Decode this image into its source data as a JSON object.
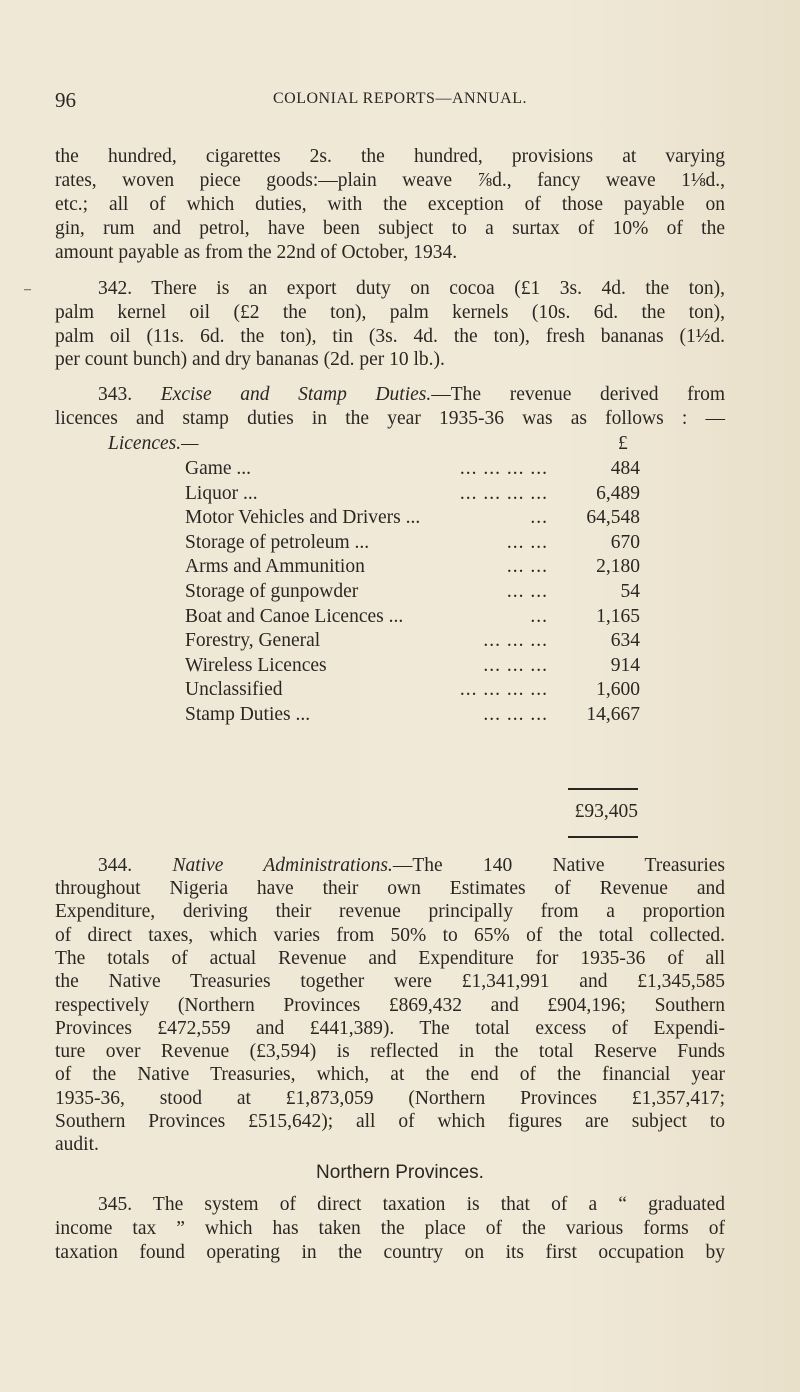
{
  "header": {
    "page_number": "96",
    "running_title": "COLONIAL REPORTS—ANNUAL."
  },
  "para_cont": [
    "the hundred, cigarettes 2s. the hundred, provisions at varying",
    "rates, woven piece goods:—plain weave ⅞d., fancy weave 1⅛d.,",
    "etc.; all of which duties, with the exception of those payable on",
    "gin, rum and petrol, have been subject to a surtax of 10% of the",
    "amount payable as from the 22nd of October, 1934."
  ],
  "para_342": [
    "342.  There is an export duty on cocoa (£1 3s. 4d. the ton),",
    "palm kernel oil (£2 the ton), palm kernels (10s. 6d. the ton),",
    "palm oil (11s. 6d. the ton), tin (3s. 4d. the ton), fresh bananas (1½d.",
    "per count bunch) and dry bananas (2d. per 10 lb.)."
  ],
  "para_343": {
    "number": "343.",
    "heading": "Excise and Stamp Duties.",
    "line1_rest": "—The revenue derived from",
    "line2": "licences and stamp duties in the year 1935-36 was as follows : —"
  },
  "table": {
    "section_label": "Licences.—",
    "currency": "£",
    "rows": [
      {
        "label": "Game ...",
        "dots": "...   ...   ...   ...",
        "value": "484"
      },
      {
        "label": "Liquor ...",
        "dots": "...   ...   ...   ...",
        "value": "6,489"
      },
      {
        "label": "Motor Vehicles and Drivers ...",
        "dots": "...",
        "value": "64,548"
      },
      {
        "label": "Storage of petroleum ...",
        "dots": "...   ...",
        "value": "670"
      },
      {
        "label": "Arms and Ammunition",
        "dots": "...   ...",
        "value": "2,180"
      },
      {
        "label": "Storage of gunpowder",
        "dots": "...   ...",
        "value": "54"
      },
      {
        "label": "Boat and Canoe Licences ...",
        "dots": "...",
        "value": "1,165"
      },
      {
        "label": "Forestry, General",
        "dots": "...   ...   ...",
        "value": "634"
      },
      {
        "label": "Wireless Licences",
        "dots": "...   ...   ...",
        "value": "914"
      },
      {
        "label": "Unclassified",
        "dots": "...   ...   ...   ...",
        "value": "1,600"
      },
      {
        "label": "Stamp Duties ...",
        "dots": "...   ...   ...",
        "value": "14,667"
      }
    ],
    "total": "£93,405"
  },
  "para_344": {
    "number": "344.",
    "heading": "Native Administrations.",
    "line1_rest": "—The 140 Native Treasuries",
    "lines": [
      "throughout Nigeria have their own Estimates of Revenue and",
      "Expenditure, deriving their revenue principally from a proportion",
      "of direct taxes, which varies from 50% to 65% of the total collected.",
      "The totals of actual Revenue and Expenditure for 1935-36 of all",
      "the Native Treasuries together were £1,341,991 and £1,345,585",
      "respectively (Northern Provinces £869,432 and £904,196; Southern",
      "Provinces £472,559 and £441,389).  The total excess of Expendi-",
      "ture over Revenue (£3,594) is reflected in the total Reserve Funds",
      "of the Native Treasuries, which, at the end of the financial year",
      "1935-36, stood at £1,873,059 (Northern Provinces £1,357,417;",
      "Southern Provinces £515,642); all of which figures are subject to",
      "audit."
    ]
  },
  "subheading": "Northern Provinces.",
  "para_345": [
    "345.  The system of direct taxation is that of a “ graduated",
    "income tax ” which has taken the place of the various forms of",
    "taxation found operating in the country on its first occupation by"
  ]
}
